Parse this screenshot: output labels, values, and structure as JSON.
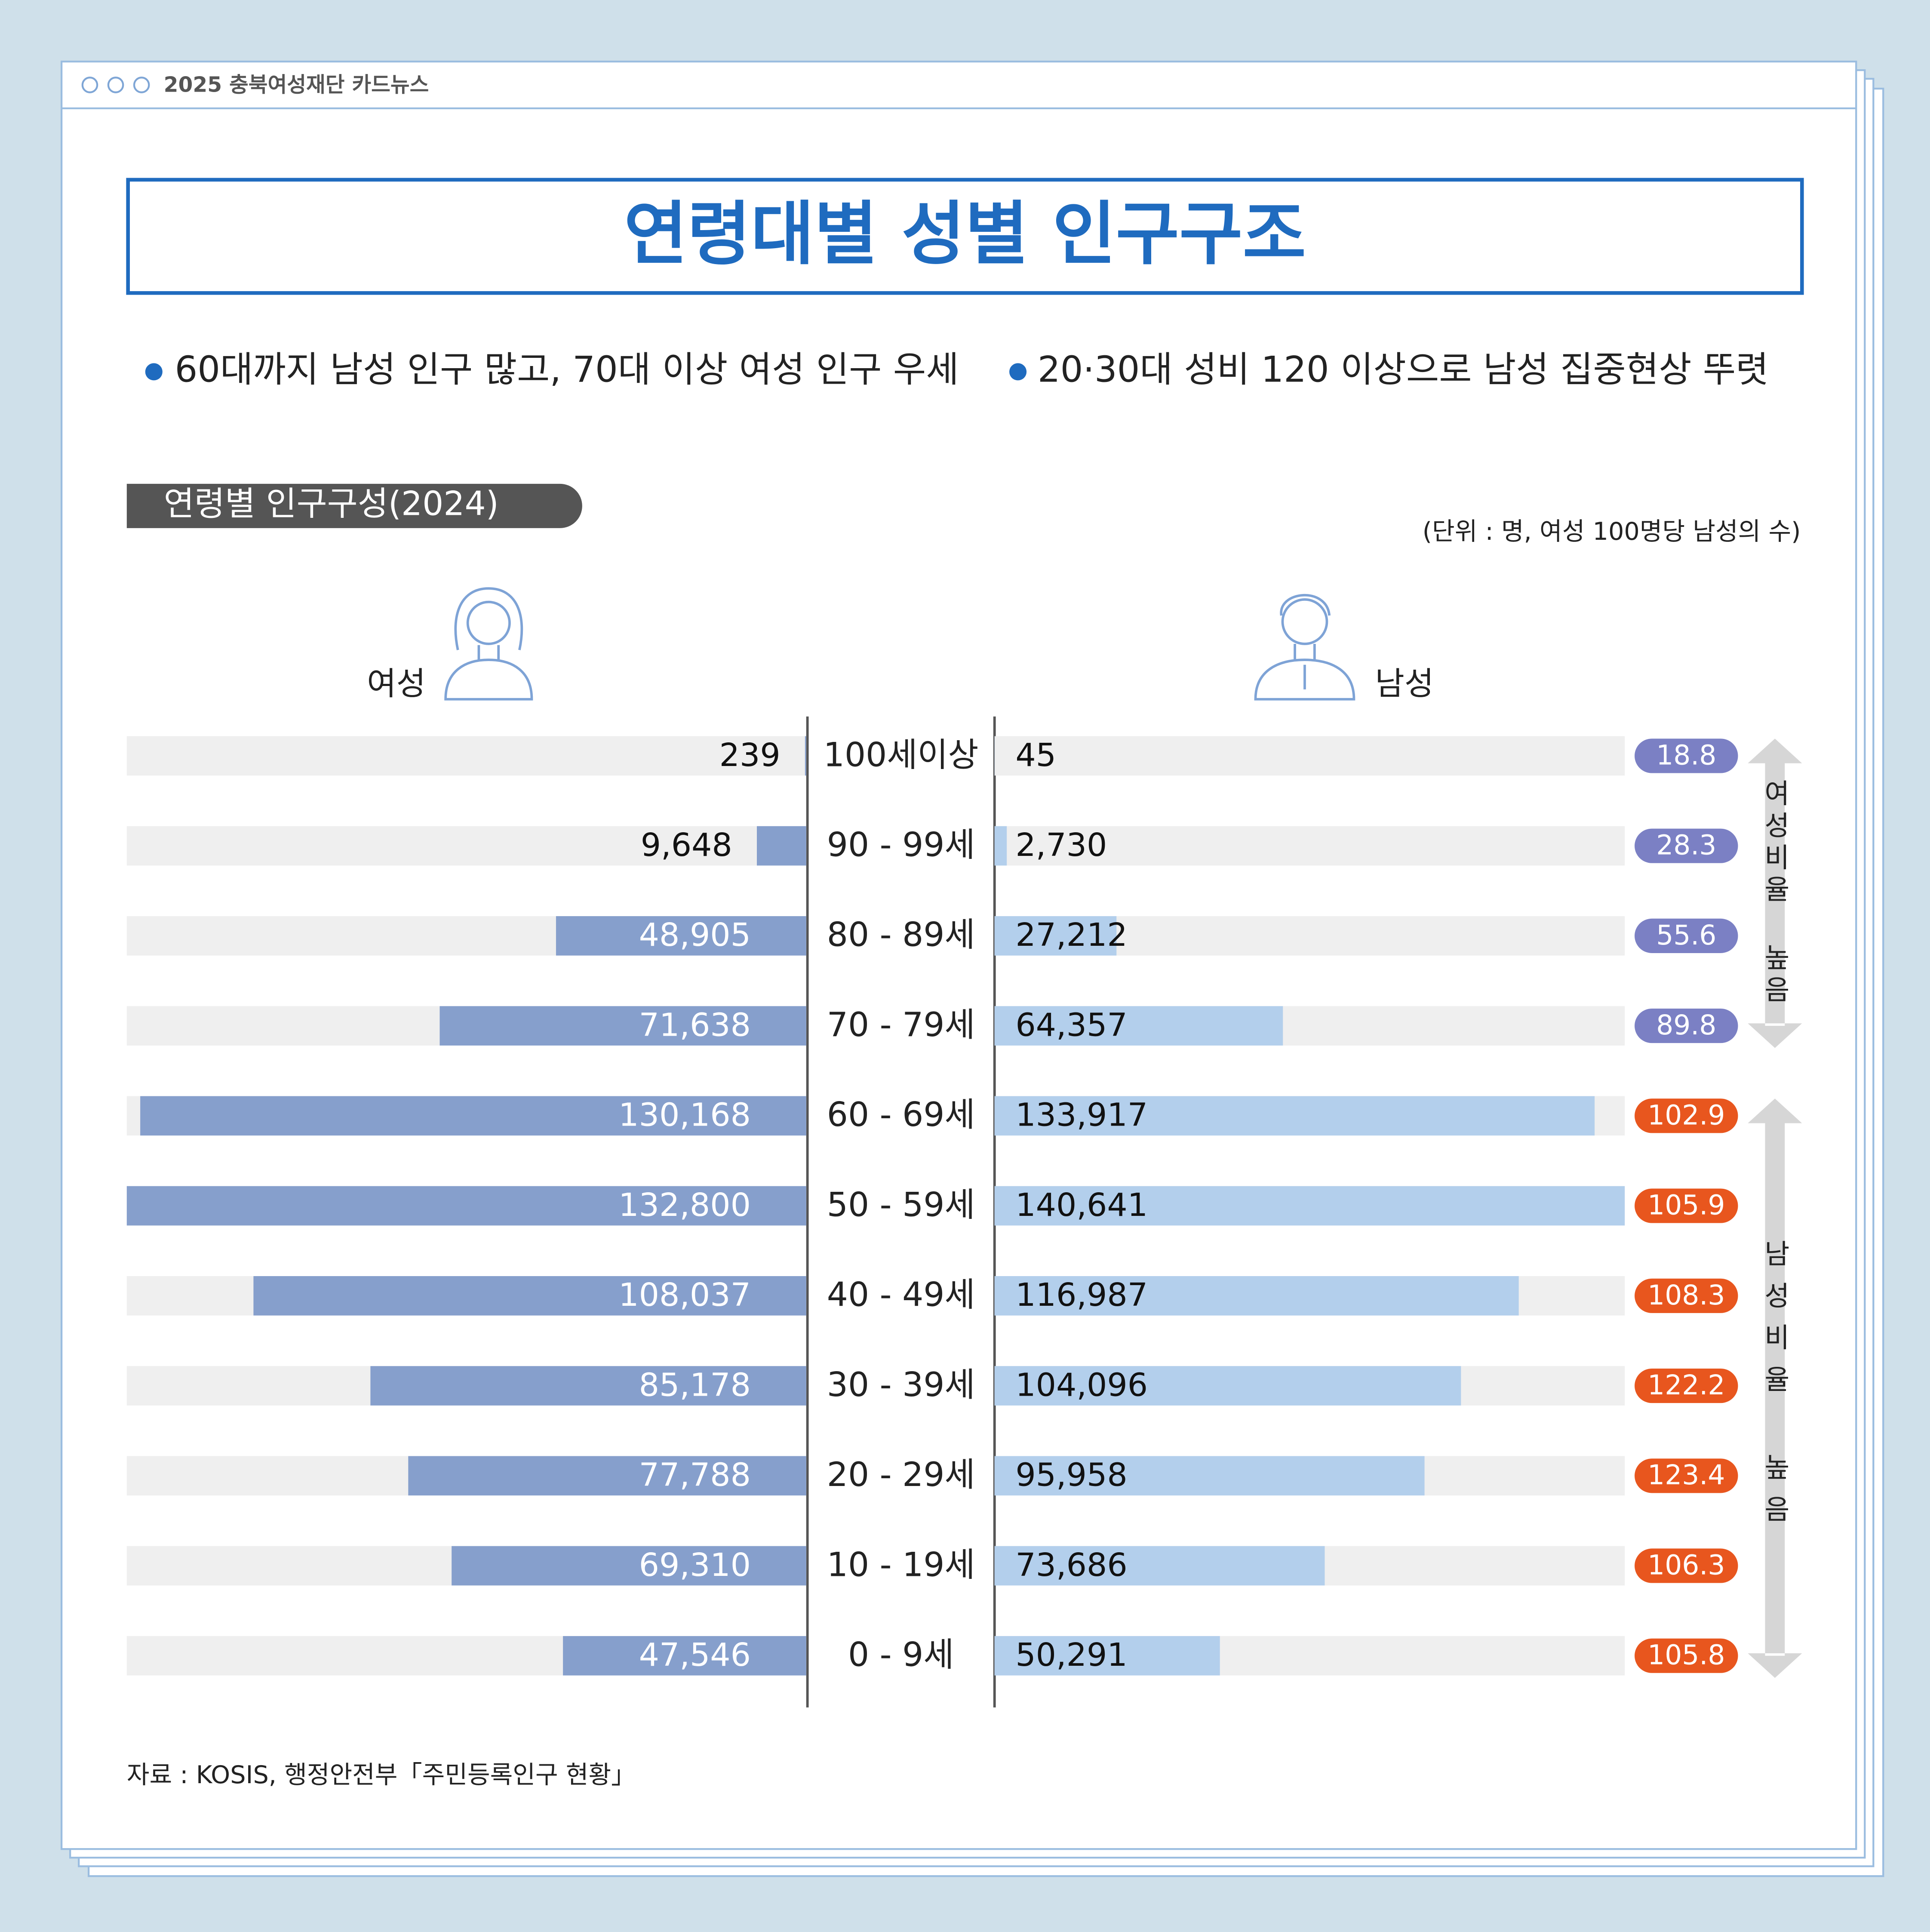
{
  "page": {
    "header": "2025 충북여성재단 카드뉴스",
    "title": "연령대별 성별 인구구조",
    "highlights": [
      "60대까지 남성 인구 많고, 70대 이상 여성 인구 우세",
      "20·30대 성비 120 이상으로 남성 집중현상 뚜렷"
    ],
    "source": "자료 : KOSIS, 행정안전부「주민등록인구 현황」"
  },
  "chart_data": {
    "type": "pyramid",
    "title": "연령별 인구구성(2024)",
    "unit": "(단위 : 명, 여성 100명당 남성의 수)",
    "categories": [
      "100세이상",
      "90 - 99세",
      "80 - 89세",
      "70 - 79세",
      "60 - 69세",
      "50 - 59세",
      "40 - 49세",
      "30 - 39세",
      "20 - 29세",
      "10 - 19세",
      "0 - 9세"
    ],
    "series": [
      {
        "name": "여성",
        "color": "#869fcc",
        "xlim": [
          0,
          132800
        ],
        "values": [
          239,
          9648,
          48905,
          71638,
          130168,
          132800,
          108037,
          85178,
          77788,
          69310,
          47546
        ],
        "value_labels": [
          "239",
          "9,648",
          "48,905",
          "71,638",
          "130,168",
          "132,800",
          "108,037",
          "85,178",
          "77,788",
          "69,310",
          "47,546"
        ]
      },
      {
        "name": "남성",
        "color": "#b3cfec",
        "xlim": [
          0,
          140641
        ],
        "values": [
          45,
          2730,
          27212,
          64357,
          133917,
          140641,
          116987,
          104096,
          95958,
          73686,
          50291
        ],
        "value_labels": [
          "45",
          "2,730",
          "27,212",
          "64,357",
          "133,917",
          "140,641",
          "116,987",
          "104,096",
          "95,958",
          "73,686",
          "50,291"
        ]
      }
    ],
    "ratio": {
      "values": [
        18.8,
        28.3,
        55.6,
        89.8,
        102.9,
        105.9,
        108.3,
        122.2,
        123.4,
        106.3,
        105.8
      ],
      "colors": [
        "#7b80c4",
        "#7b80c4",
        "#7b80c4",
        "#7b80c4",
        "#e8561e",
        "#e8561e",
        "#e8561e",
        "#e8561e",
        "#e8561e",
        "#e8561e",
        "#e8561e"
      ]
    },
    "annotations": [
      "여성비율 높음",
      "남성비율 높음"
    ]
  }
}
